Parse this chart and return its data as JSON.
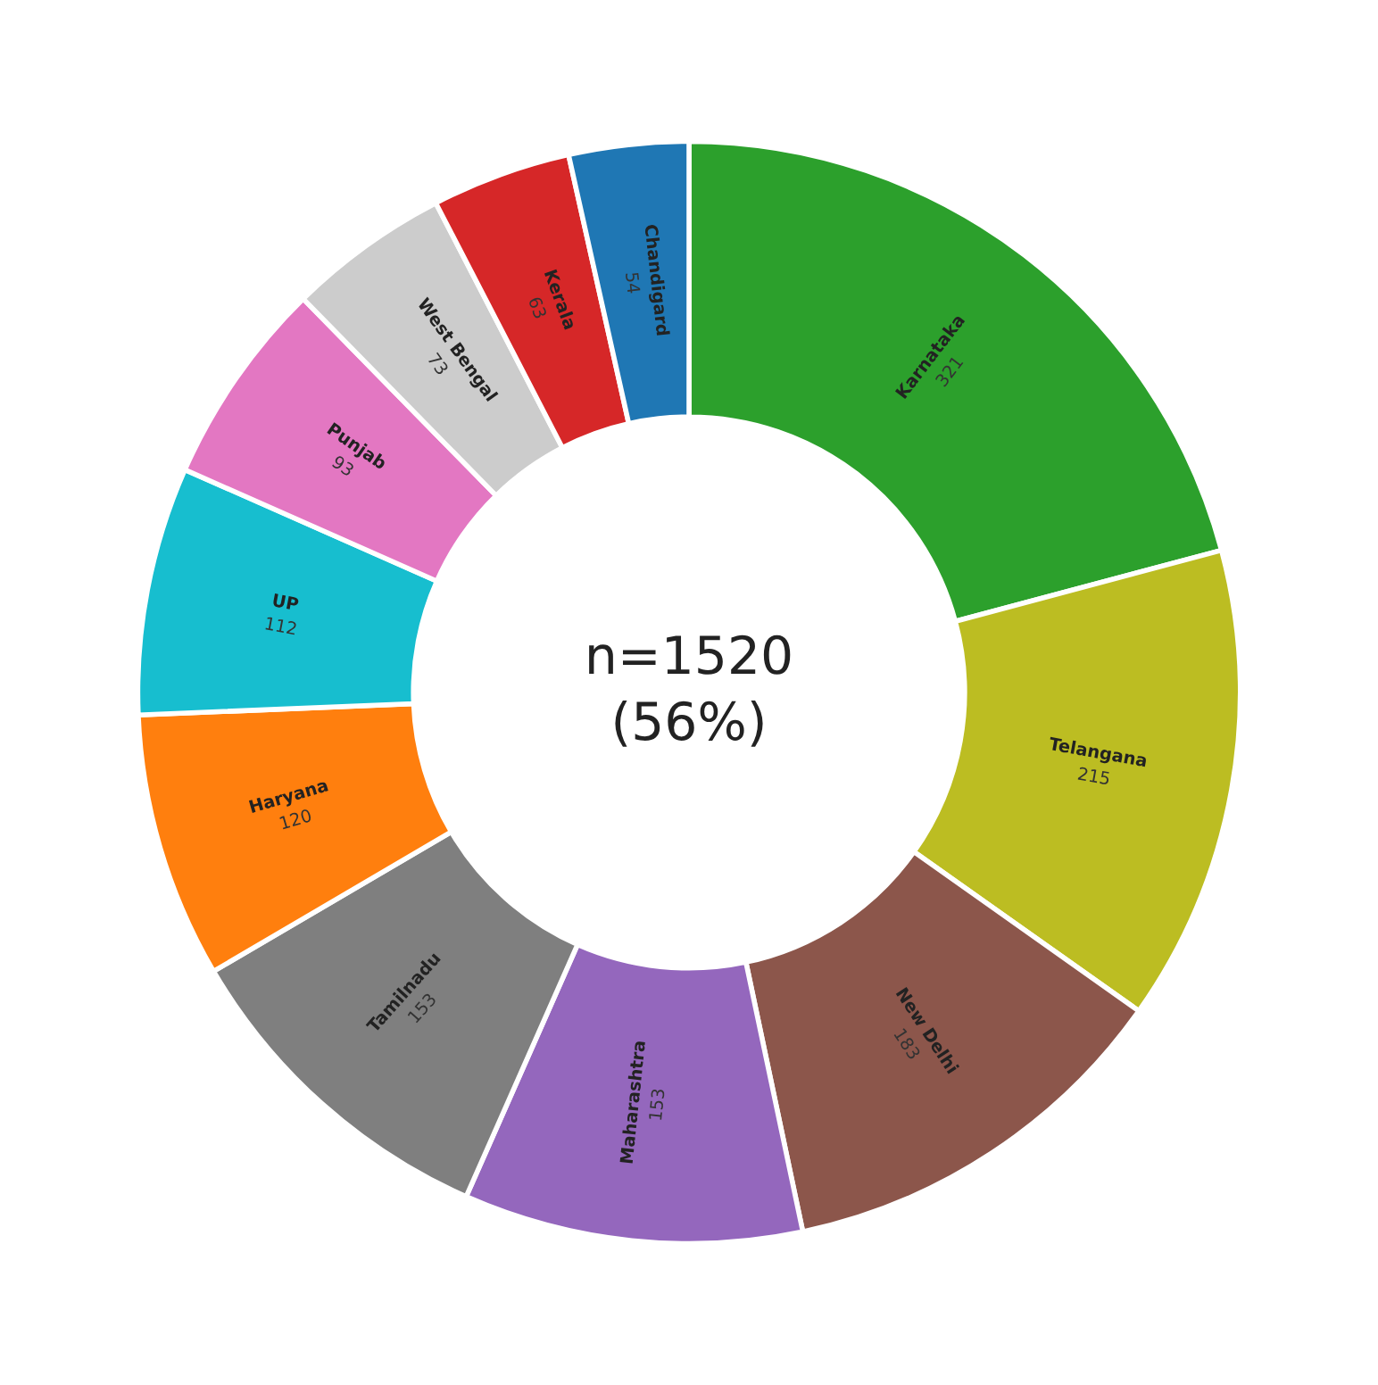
{
  "chart_data": {
    "type": "donut",
    "categories": [
      "Karnataka",
      "Telangana",
      "New Delhi",
      "Maharashtra",
      "Tamilnadu",
      "Haryana",
      "UP",
      "Punjab",
      "West Bengal",
      "Kerala",
      "Chandigard"
    ],
    "values": [
      321,
      215,
      183,
      153,
      153,
      120,
      112,
      93,
      73,
      63,
      54
    ],
    "colors": [
      "#2ca02c",
      "#bcbd22",
      "#8c564b",
      "#9467bd",
      "#7f7f7f",
      "#ff7f0e",
      "#17becf",
      "#e377c2",
      "#cccccc",
      "#d62728",
      "#1f77b4"
    ],
    "data_labels": true,
    "legend": false,
    "annotations": [
      "n=1520",
      "(56%)"
    ]
  }
}
